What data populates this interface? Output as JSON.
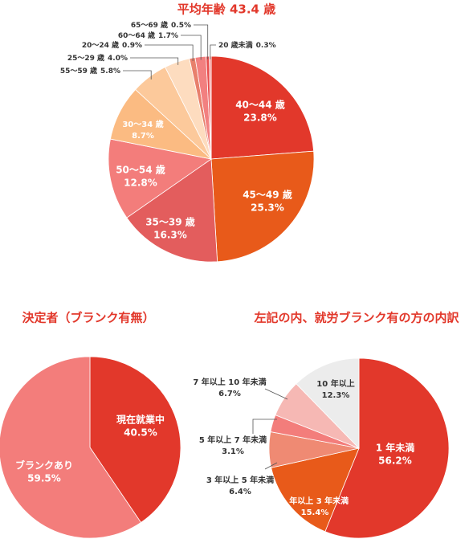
{
  "chart_data": [
    {
      "type": "pie",
      "title": "平均年齢 43.4 歳",
      "categories": [
        "40〜44 歳",
        "45〜49 歳",
        "35〜39 歳",
        "50〜54 歳",
        "30〜34 歳",
        "55〜59 歳",
        "25〜29 歳",
        "20〜24 歳",
        "60〜64 歳",
        "65〜69 歳",
        "20 歳未満"
      ],
      "values": [
        23.8,
        25.3,
        16.3,
        12.8,
        8.7,
        5.8,
        4.0,
        0.9,
        1.7,
        0.5,
        0.3
      ],
      "value_labels": [
        "23.8%",
        "25.3%",
        "16.3%",
        "12.8%",
        "8.7%",
        "5.8%",
        "4.0%",
        "0.9%",
        "1.7%",
        "0.5%",
        "0.3%"
      ],
      "colors": [
        "#e2382b",
        "#e85a1a",
        "#e35d5d",
        "#f37d7b",
        "#fbbb82",
        "#fcc99b",
        "#fddcbf",
        "#e8806c",
        "#f28080",
        "#e84c4c",
        "#f49090"
      ]
    },
    {
      "type": "pie",
      "title": "決定者（ブランク有無）",
      "categories": [
        "現在就業中",
        "ブランクあり"
      ],
      "values": [
        40.5,
        59.5
      ],
      "value_labels": [
        "40.5%",
        "59.5%"
      ],
      "colors": [
        "#e2382b",
        "#f37d7b"
      ]
    },
    {
      "type": "pie",
      "title": "左記の内、就労ブランク有の方の内訳",
      "categories": [
        "1 年未満",
        "1 年以上 3 年未満",
        "3 年以上 5 年未満",
        "5 年以上 7 年未満",
        "7 年以上 10 年未満",
        "10 年以上"
      ],
      "values": [
        56.2,
        15.4,
        6.4,
        3.1,
        6.7,
        12.3
      ],
      "value_labels": [
        "56.2%",
        "15.4%",
        "6.4%",
        "3.1%",
        "6.7%",
        "12.3%"
      ],
      "colors": [
        "#e2382b",
        "#e85a1a",
        "#ef8a73",
        "#f37d7b",
        "#f6b8b4",
        "#ececec"
      ]
    }
  ]
}
